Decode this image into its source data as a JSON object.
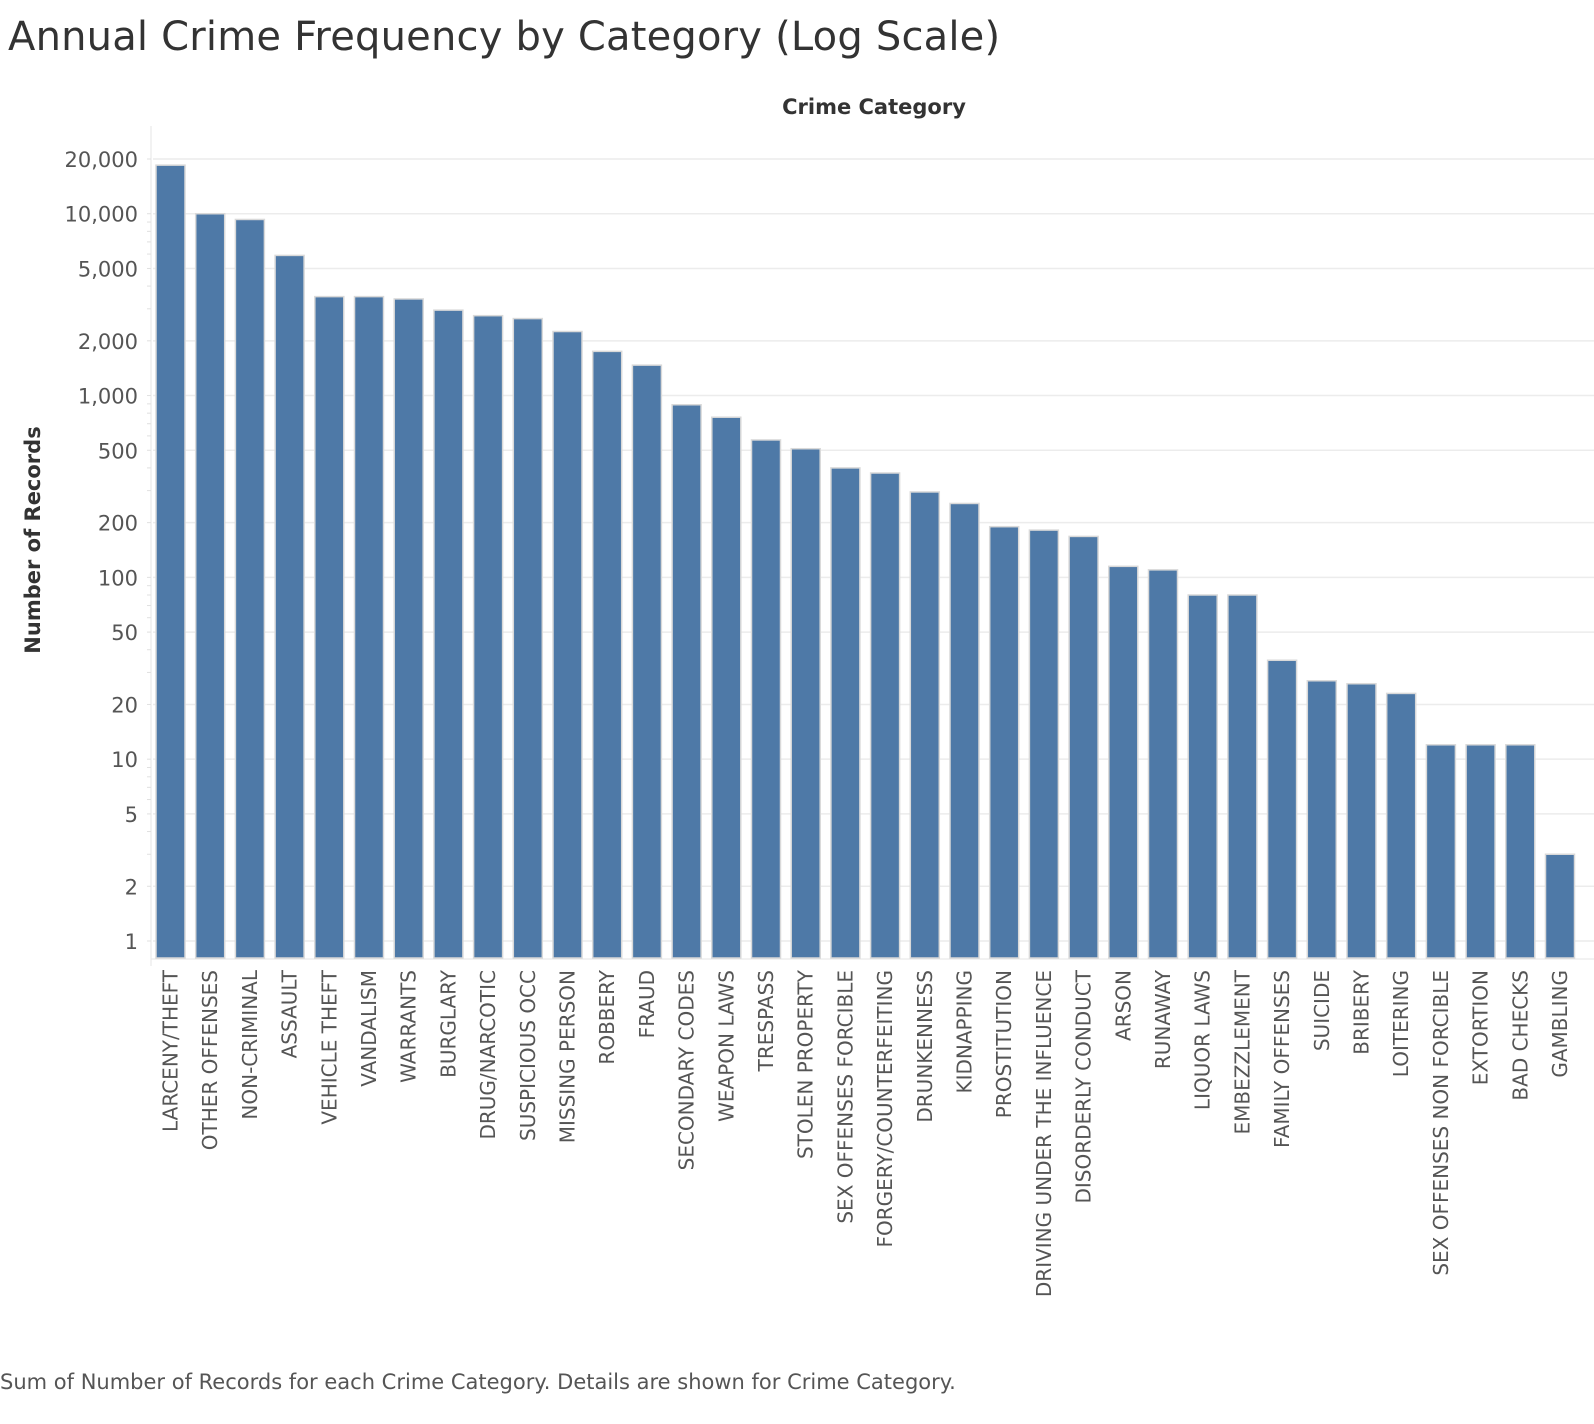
{
  "page": {
    "title": "Annual Crime Frequency by Category (Log Scale)",
    "caption": "Sum of Number of Records for each Crime Category.  Details are shown for Crime Category."
  },
  "colors": {
    "bar": "#4e79a7",
    "bar_border": "#d9d9d9",
    "grid": "#ececec",
    "axis_text": "#555555"
  },
  "chart_data": {
    "type": "bar",
    "title": "Annual Crime Frequency by Category (Log Scale)",
    "xlabel": "Crime Category",
    "ylabel": "Number of Records",
    "y_scale": "log",
    "ylim": [
      0.8,
      26000
    ],
    "grid": true,
    "y_ticks": [
      1,
      2,
      5,
      10,
      20,
      50,
      100,
      200,
      500,
      1000,
      2000,
      5000,
      10000,
      20000
    ],
    "y_tick_labels": [
      "1",
      "2",
      "5",
      "10",
      "20",
      "50",
      "100",
      "200",
      "500",
      "1,000",
      "2,000",
      "5,000",
      "10,000",
      "20,000"
    ],
    "categories": [
      "LARCENY/THEFT",
      "OTHER OFFENSES",
      "NON-CRIMINAL",
      "ASSAULT",
      "VEHICLE THEFT",
      "VANDALISM",
      "WARRANTS",
      "BURGLARY",
      "DRUG/NARCOTIC",
      "SUSPICIOUS OCC",
      "MISSING PERSON",
      "ROBBERY",
      "FRAUD",
      "SECONDARY CODES",
      "WEAPON LAWS",
      "TRESPASS",
      "STOLEN PROPERTY",
      "SEX OFFENSES FORCIBLE",
      "FORGERY/COUNTERFEITING",
      "DRUNKENNESS",
      "KIDNAPPING",
      "PROSTITUTION",
      "DRIVING UNDER THE INFLUENCE",
      "DISORDERLY CONDUCT",
      "ARSON",
      "RUNAWAY",
      "LIQUOR LAWS",
      "EMBEZZLEMENT",
      "FAMILY OFFENSES",
      "SUICIDE",
      "BRIBERY",
      "LOITERING",
      "SEX OFFENSES NON FORCIBLE",
      "EXTORTION",
      "BAD CHECKS",
      "GAMBLING"
    ],
    "values": [
      18500,
      10000,
      9300,
      5900,
      3500,
      3500,
      3400,
      2950,
      2750,
      2650,
      2250,
      1750,
      1470,
      890,
      760,
      570,
      510,
      400,
      375,
      295,
      255,
      190,
      182,
      168,
      115,
      110,
      80,
      80,
      35,
      27,
      26,
      23,
      12,
      12,
      12,
      3
    ]
  }
}
